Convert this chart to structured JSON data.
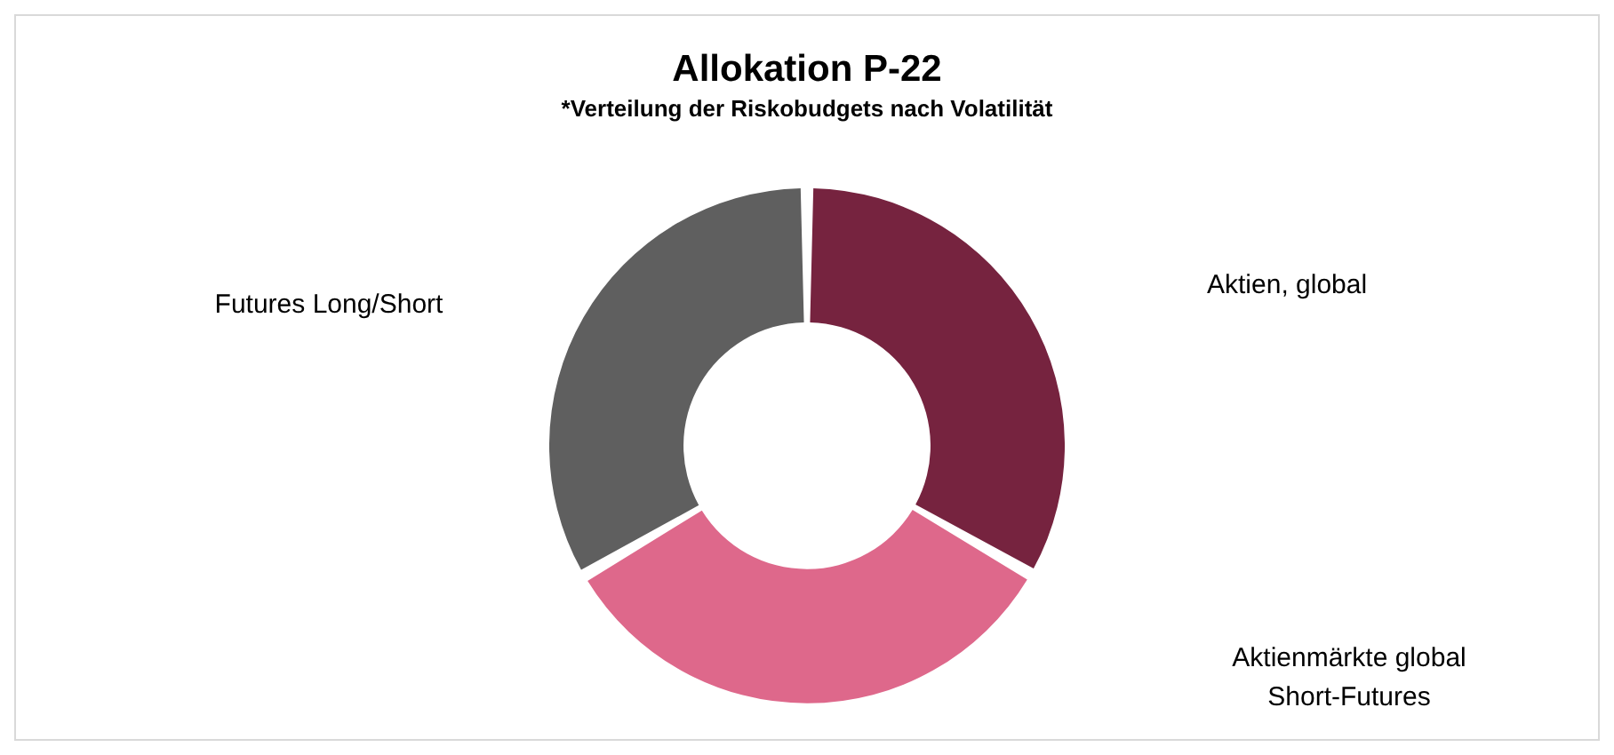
{
  "chart_data": {
    "type": "donut",
    "title": "Allokation P-22",
    "subtitle": "*Verteilung der Riskobudgets nach Volatilität",
    "categories": [
      "Aktien, global",
      "Aktienmärkte global\nShort-Futures",
      "Futures Long/Short"
    ],
    "values": [
      33.3,
      33.3,
      33.4
    ],
    "colors": [
      "#76233f",
      "#de688b",
      "#5f5f5f"
    ],
    "legend": false
  }
}
